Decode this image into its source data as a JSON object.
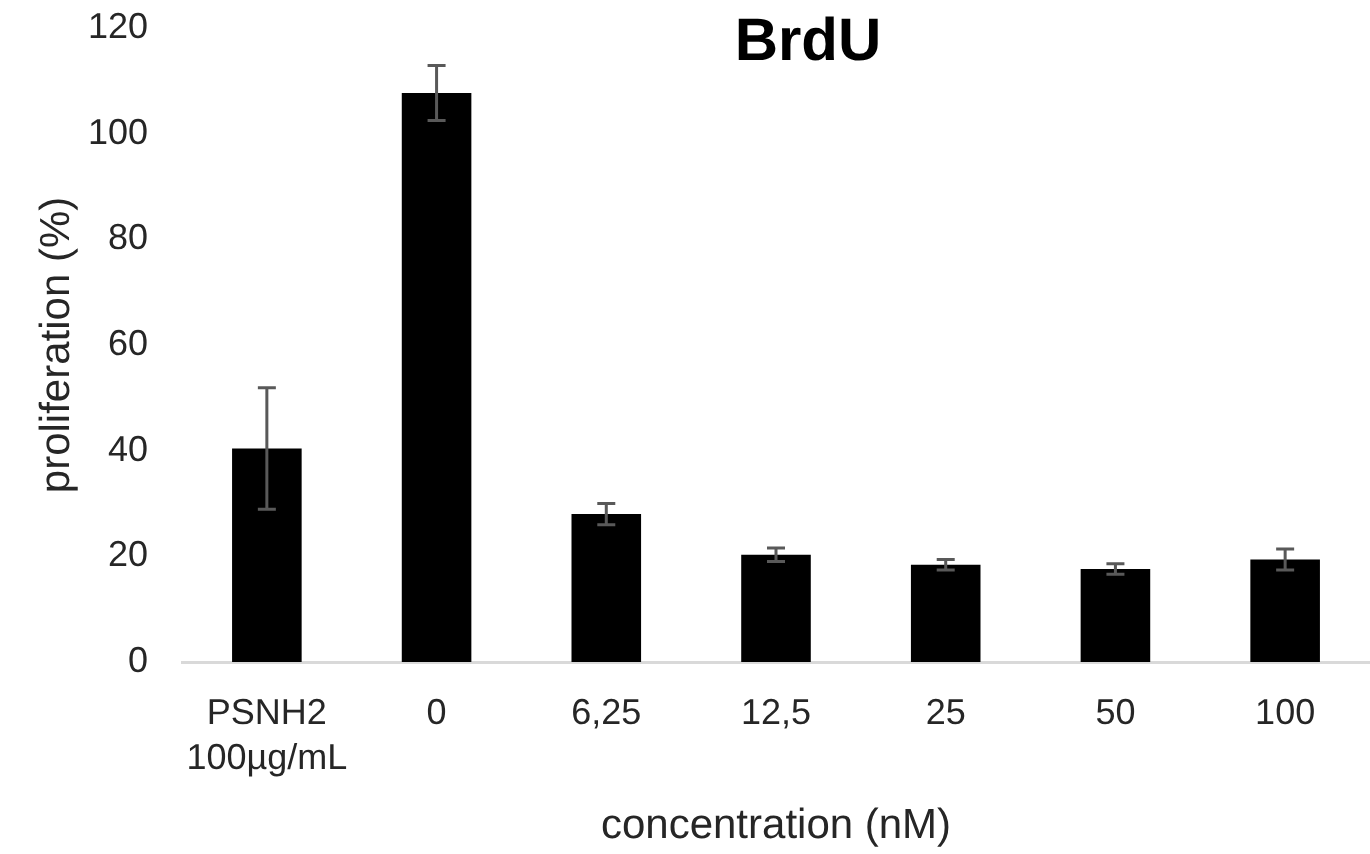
{
  "chart_data": {
    "type": "bar",
    "title": "BrdU",
    "xlabel": "concentration (nM)",
    "ylabel": "proliferation (%)",
    "categories": [
      "PSNH2\n100µg/mL",
      "0",
      "6,25",
      "12,5",
      "25",
      "50",
      "100"
    ],
    "values": [
      40.4,
      107.7,
      28.0,
      20.3,
      18.4,
      17.6,
      19.4
    ],
    "errors": [
      11.5,
      5.2,
      2.0,
      1.3,
      1.0,
      1.0,
      2.0
    ],
    "color": "#000000",
    "ylim": [
      0,
      120
    ],
    "yticks": [
      0,
      20,
      40,
      60,
      80,
      100,
      120
    ]
  }
}
